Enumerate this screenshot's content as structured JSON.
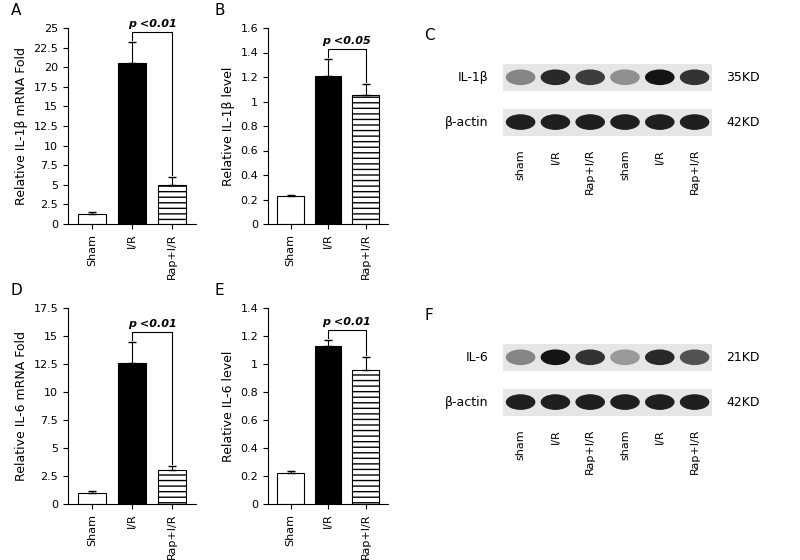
{
  "chart_data": [
    {
      "type": "bar",
      "panel": "A",
      "y_label": "Relative IL-1β mRNA Fold",
      "categories": [
        "Sham",
        "I/R",
        "Rap+I/R"
      ],
      "values": [
        1.3,
        20.5,
        5.0
      ],
      "errors": [
        0.2,
        2.7,
        1.0
      ],
      "colors": [
        "#ffffff",
        "#000000",
        "#ffffff"
      ],
      "ylim": [
        0,
        25
      ],
      "yticks": [
        0,
        2.5,
        5,
        7.5,
        10,
        12.5,
        15,
        17.5,
        20,
        22.5,
        25
      ],
      "annotations": [
        {
          "text": "p <0.01",
          "between": [
            "I/R",
            "Rap+I/R"
          ]
        }
      ]
    },
    {
      "type": "bar",
      "panel": "B",
      "y_label": "Relative IL-1β level",
      "categories": [
        "Sham",
        "I/R",
        "Rap+I/R"
      ],
      "values": [
        0.23,
        1.21,
        1.05
      ],
      "errors": [
        0.01,
        0.14,
        0.09
      ],
      "colors": [
        "#ffffff",
        "#000000",
        "#ffffff"
      ],
      "ylim": [
        0,
        1.6
      ],
      "yticks": [
        0,
        0.2,
        0.4,
        0.6,
        0.8,
        1,
        1.2,
        1.4,
        1.6
      ],
      "annotations": [
        {
          "text": "p <0.05",
          "between": [
            "I/R",
            "Rap+I/R"
          ]
        }
      ]
    },
    {
      "type": "bar",
      "panel": "D",
      "y_label": "Relative IL-6 mRNA Fold",
      "categories": [
        "Sham",
        "I/R",
        "Rap+I/R"
      ],
      "values": [
        1.0,
        12.6,
        3.0
      ],
      "errors": [
        0.15,
        1.9,
        0.4
      ],
      "colors": [
        "#ffffff",
        "#000000",
        "#ffffff"
      ],
      "ylim": [
        0,
        17.5
      ],
      "yticks": [
        0,
        2.5,
        5,
        7.5,
        10,
        12.5,
        15,
        17.5
      ],
      "annotations": [
        {
          "text": "p <0.01",
          "between": [
            "I/R",
            "Rap+I/R"
          ]
        }
      ]
    },
    {
      "type": "bar",
      "panel": "E",
      "y_label": "Relative IL-6 level",
      "categories": [
        "Sham",
        "I/R",
        "Rap+I/R"
      ],
      "values": [
        0.22,
        1.13,
        0.96
      ],
      "errors": [
        0.015,
        0.04,
        0.09
      ],
      "colors": [
        "#ffffff",
        "#000000",
        "#ffffff"
      ],
      "ylim": [
        0,
        1.4
      ],
      "yticks": [
        0,
        0.2,
        0.4,
        0.6,
        0.8,
        1,
        1.2,
        1.4
      ],
      "annotations": [
        {
          "text": "p <0.01",
          "between": [
            "I/R",
            "Rap+I/R"
          ]
        }
      ]
    }
  ],
  "blots": [
    {
      "panel": "C",
      "lanes": [
        "sham",
        "I/R",
        "Rap+I/R",
        "sham",
        "I/R",
        "Rap+I/R"
      ],
      "rows": [
        {
          "protein": "IL-1β",
          "size": "35KD",
          "intensity": [
            0.35,
            0.8,
            0.7,
            0.3,
            0.9,
            0.75
          ]
        },
        {
          "protein": "β-actin",
          "size": "42KD",
          "intensity": [
            0.85,
            0.85,
            0.85,
            0.85,
            0.85,
            0.85
          ]
        }
      ]
    },
    {
      "panel": "F",
      "lanes": [
        "sham",
        "I/R",
        "Rap+I/R",
        "sham",
        "I/R",
        "Rap+I/R"
      ],
      "rows": [
        {
          "protein": "IL-6",
          "size": "21KD",
          "intensity": [
            0.35,
            0.9,
            0.75,
            0.25,
            0.8,
            0.6
          ]
        },
        {
          "protein": "β-actin",
          "size": "42KD",
          "intensity": [
            0.85,
            0.85,
            0.85,
            0.85,
            0.85,
            0.85
          ]
        }
      ]
    }
  ]
}
